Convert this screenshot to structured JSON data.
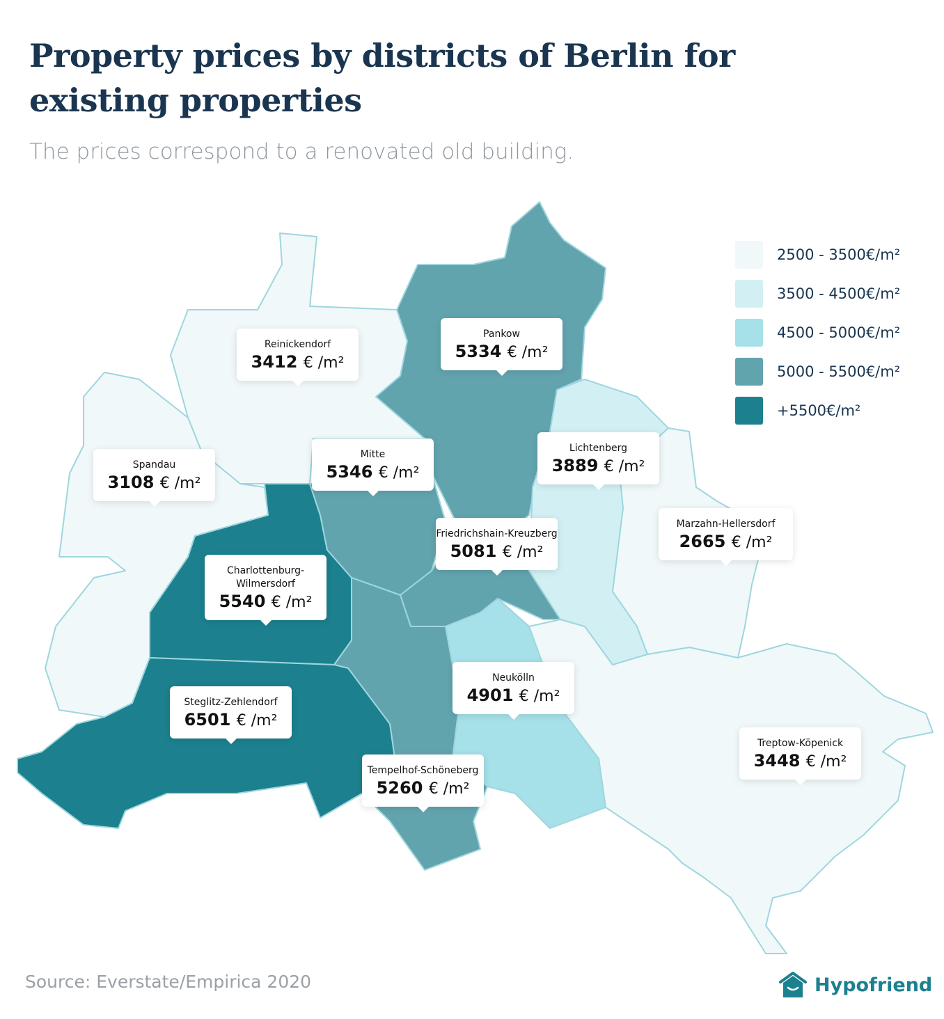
{
  "title": "Property prices by districts of Berlin for existing properties",
  "subtitle": "The prices correspond to a renovated old building.",
  "colors": {
    "band1": "#f0f8fa",
    "band2": "#d2f0f4",
    "band3": "#a6e0e8",
    "band4": "#62a4ae",
    "band5": "#1c808e",
    "border": "#9fd6de",
    "text": "#1a3550"
  },
  "legend": [
    {
      "label": "2500 - 3500€/m²",
      "color": "#f0f8fa"
    },
    {
      "label": "3500 - 4500€/m²",
      "color": "#d2f0f4"
    },
    {
      "label": "4500 - 5000€/m²",
      "color": "#a6e0e8"
    },
    {
      "label": "5000 - 5500€/m²",
      "color": "#62a4ae"
    },
    {
      "label": "+5500€/m²",
      "color": "#1c808e"
    }
  ],
  "districts": [
    {
      "name": "Reinickendorf",
      "price": "3412",
      "unit": "€ /m²",
      "band": 1
    },
    {
      "name": "Pankow",
      "price": "5334",
      "unit": "€ /m²",
      "band": 4
    },
    {
      "name": "Spandau",
      "price": "3108",
      "unit": "€ /m²",
      "band": 1
    },
    {
      "name": "Mitte",
      "price": "5346",
      "unit": "€ /m²",
      "band": 4
    },
    {
      "name": "Lichtenberg",
      "price": "3889",
      "unit": "€ /m²",
      "band": 2
    },
    {
      "name": "Marzahn-Hellersdorf",
      "price": "2665",
      "unit": "€ /m²",
      "band": 1
    },
    {
      "name": "Friedrichshain-Kreuzberg",
      "price": "5081",
      "unit": "€ /m²",
      "band": 4
    },
    {
      "name": "Charlottenburg-Wilmersdorf",
      "price": "5540",
      "unit": "€ /m²",
      "band": 5
    },
    {
      "name": "Neukölln",
      "price": "4901",
      "unit": "€ /m²",
      "band": 3
    },
    {
      "name": "Steglitz-Zehlendorf",
      "price": "6501",
      "unit": "€ /m²",
      "band": 5
    },
    {
      "name": "Tempelhof-Schöneberg",
      "price": "5260",
      "unit": "€ /m²",
      "band": 4
    },
    {
      "name": "Treptow-Köpenick",
      "price": "3448",
      "unit": "€ /m²",
      "band": 1
    }
  ],
  "source": "Source: Everstate/Empirica 2020",
  "brand": "Hypofriend"
}
